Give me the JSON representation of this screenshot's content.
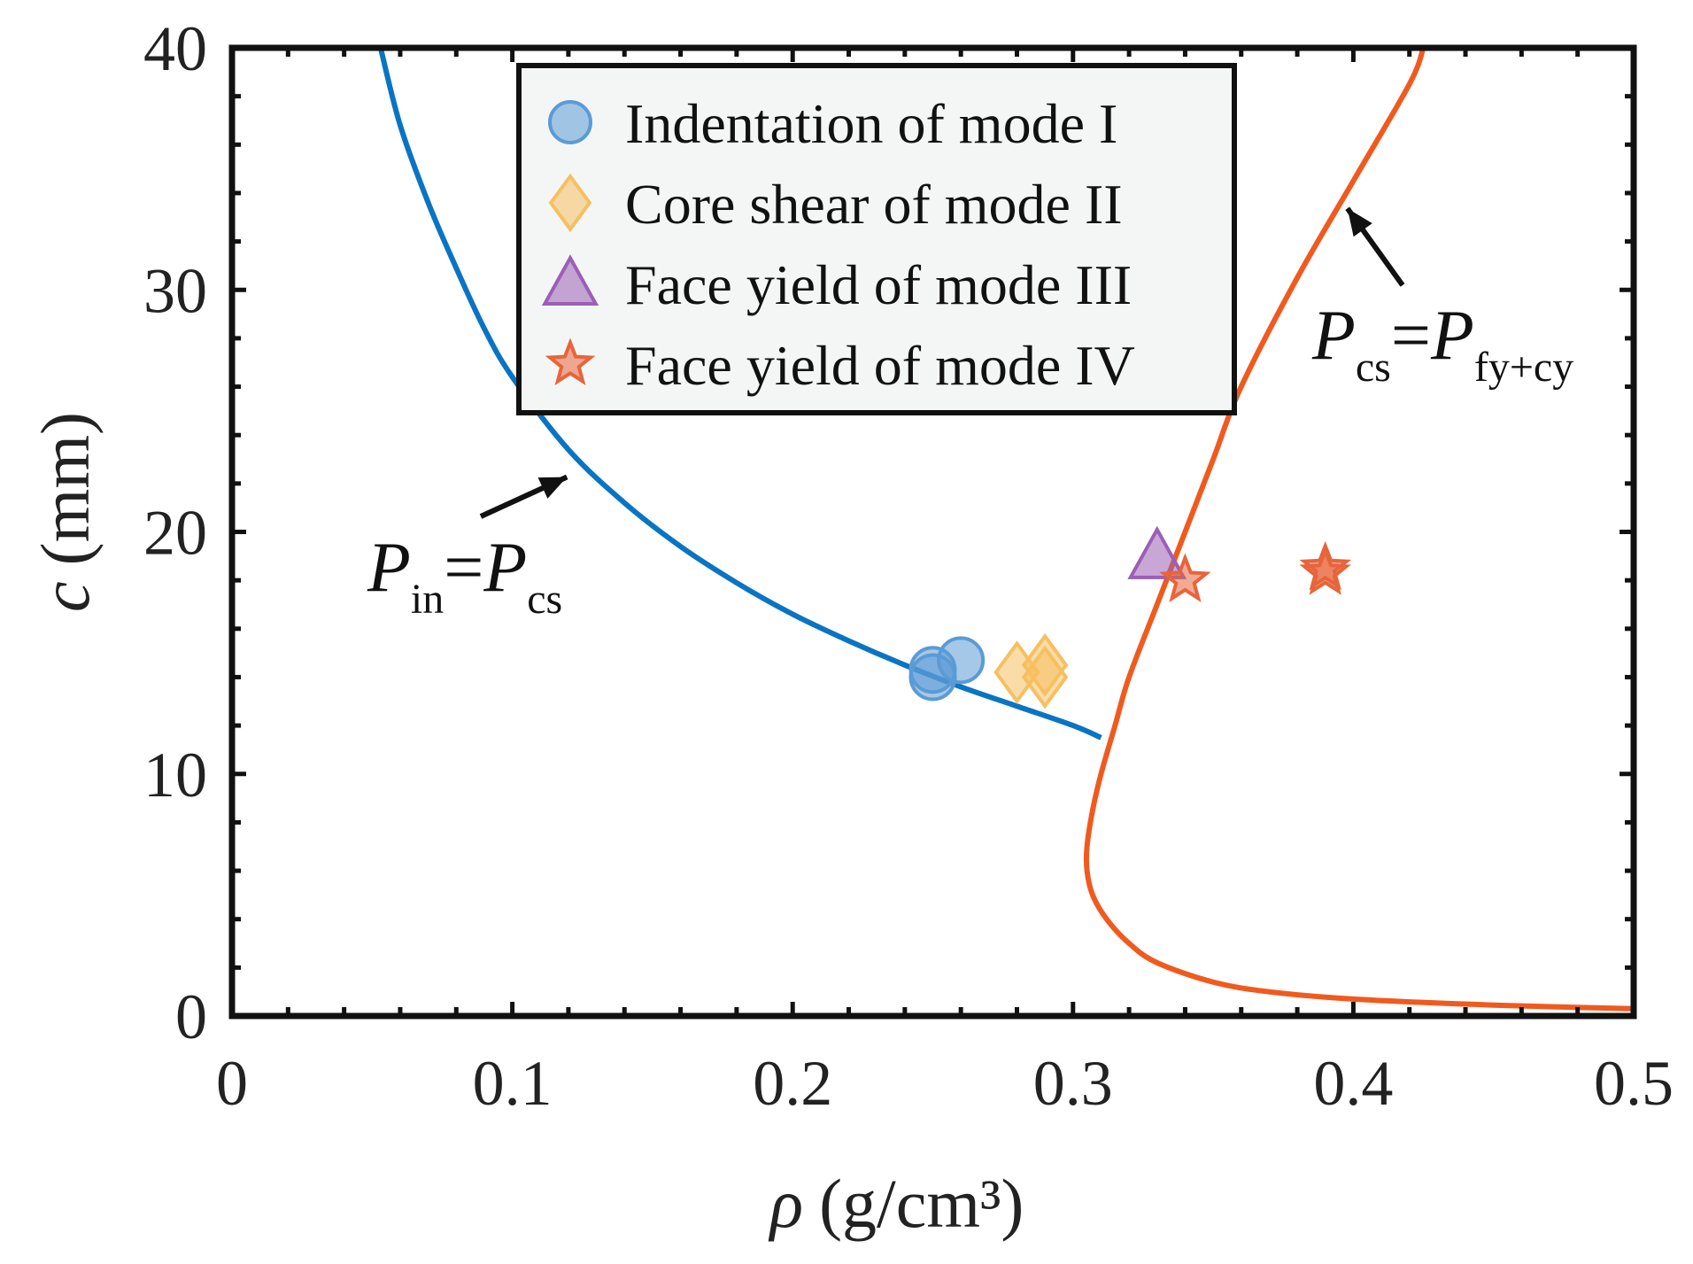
{
  "chart_data": {
    "type": "scatter",
    "title": "",
    "xlabel_symbol": "ρ",
    "xlabel_unit": "(g/cm³)",
    "ylabel_symbol": "c",
    "ylabel_unit": "(mm)",
    "xlim": [
      0,
      0.5
    ],
    "ylim": [
      0,
      40
    ],
    "x_ticks": [
      0,
      0.1,
      0.2,
      0.3,
      0.4,
      0.5
    ],
    "x_tick_labels": [
      "0",
      "0.1",
      "0.2",
      "0.3",
      "0.4",
      "0.5"
    ],
    "y_ticks": [
      0,
      10,
      20,
      30,
      40
    ],
    "y_tick_labels": [
      "0",
      "10",
      "20",
      "30",
      "40"
    ],
    "grid": false,
    "legend_position": "top-center",
    "series": [
      {
        "name": "Indentation of mode I",
        "marker": "circle",
        "color": "#5b9bd5",
        "x": [
          0.25,
          0.25,
          0.26
        ],
        "y": [
          14.0,
          14.3,
          14.7
        ]
      },
      {
        "name": "Core shear of mode II",
        "marker": "diamond",
        "color": "#f5c061",
        "x": [
          0.28,
          0.29,
          0.29
        ],
        "y": [
          14.2,
          14.0,
          14.5
        ]
      },
      {
        "name": "Face yield of mode III",
        "marker": "triangle",
        "color": "#9b5fb5",
        "x": [
          0.33
        ],
        "y": [
          19.0
        ]
      },
      {
        "name": "Face yield of mode IV",
        "marker": "star",
        "color": "#e8643a",
        "x": [
          0.34,
          0.39,
          0.39
        ],
        "y": [
          18.0,
          18.5,
          18.3
        ]
      }
    ],
    "curves": [
      {
        "name": "P_in = P_cs boundary",
        "color": "#0a74c4",
        "x": [
          0.053,
          0.06,
          0.07,
          0.08,
          0.09,
          0.1,
          0.12,
          0.14,
          0.16,
          0.18,
          0.2,
          0.22,
          0.24,
          0.26,
          0.28,
          0.3,
          0.31
        ],
        "y": [
          40,
          36.8,
          33.6,
          30.9,
          28.4,
          26.4,
          23.4,
          21.2,
          19.4,
          17.9,
          16.6,
          15.5,
          14.5,
          13.6,
          12.8,
          12.0,
          11.5
        ]
      },
      {
        "name": "P_cs = P_fy+cy boundary",
        "color": "#f05a1e",
        "x": [
          0.5,
          0.45,
          0.4,
          0.37,
          0.35,
          0.33,
          0.32,
          0.312,
          0.307,
          0.305,
          0.305,
          0.307,
          0.31,
          0.315,
          0.32,
          0.33,
          0.34,
          0.35,
          0.36,
          0.38,
          0.4,
          0.42,
          0.425
        ],
        "y": [
          0.3,
          0.45,
          0.7,
          1.0,
          1.4,
          2.2,
          3.0,
          4.0,
          5.0,
          6.0,
          7.0,
          8.5,
          10.0,
          12.0,
          14.0,
          17.0,
          20.0,
          23.0,
          26.0,
          30.5,
          34.5,
          38.5,
          40
        ]
      }
    ],
    "annotations": [
      {
        "main": "P",
        "sub": "in",
        "eq": "=",
        "main2": "P",
        "sub2": "cs",
        "arrow_to": [
          0.11,
          23
        ]
      },
      {
        "main": "P",
        "sub": "cs",
        "eq": "=",
        "main2": "P",
        "sub2": "fy+cy",
        "arrow_to": [
          0.39,
          33
        ]
      }
    ]
  },
  "colors": {
    "frame": "#111111",
    "legend_bg": "#f4f6f6",
    "blue_curve": "#0a74c4",
    "orange_curve": "#f05a1e"
  }
}
